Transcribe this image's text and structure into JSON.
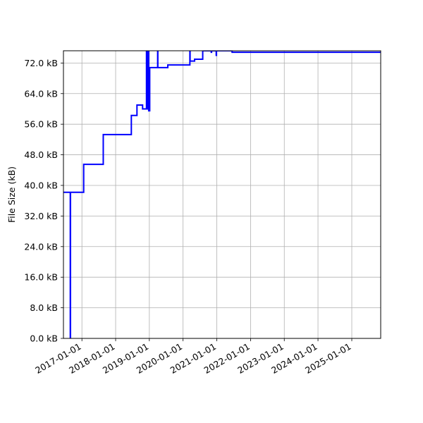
{
  "chart_data": {
    "type": "line",
    "title": "",
    "xlabel": "",
    "ylabel": "File Size (kB)",
    "grid": true,
    "legend": "none",
    "series_color": "#0000ff",
    "grid_color": "#b0b0b0",
    "xlim": [
      "2016-06-15",
      "2025-11-10"
    ],
    "ylim": [
      0,
      75.2
    ],
    "x_ticks": [
      {
        "date": "2017-01-01",
        "label": "2017-01-01"
      },
      {
        "date": "2018-01-01",
        "label": "2018-01-01"
      },
      {
        "date": "2019-01-01",
        "label": "2019-01-01"
      },
      {
        "date": "2020-01-01",
        "label": "2020-01-01"
      },
      {
        "date": "2021-01-01",
        "label": "2021-01-01"
      },
      {
        "date": "2022-01-01",
        "label": "2022-01-01"
      },
      {
        "date": "2023-01-01",
        "label": "2023-01-01"
      },
      {
        "date": "2024-01-01",
        "label": "2024-01-01"
      },
      {
        "date": "2025-01-01",
        "label": "2025-01-01"
      }
    ],
    "y_ticks": [
      {
        "value": 0,
        "label": "0.0 kB"
      },
      {
        "value": 8,
        "label": "8.0 kB"
      },
      {
        "value": 16,
        "label": "16.0 kB"
      },
      {
        "value": 24,
        "label": "24.0 kB"
      },
      {
        "value": 32,
        "label": "32.0 kB"
      },
      {
        "value": 40,
        "label": "40.0 kB"
      },
      {
        "value": 48,
        "label": "48.0 kB"
      },
      {
        "value": 56,
        "label": "56.0 kB"
      },
      {
        "value": 64,
        "label": "64.0 kB"
      },
      {
        "value": 72,
        "label": "72.0 kB"
      }
    ],
    "series": [
      {
        "points": [
          [
            "2016-06-15",
            38.2
          ],
          [
            "2016-08-28",
            38.2
          ],
          [
            "2016-08-28",
            0
          ],
          [
            "2016-08-30",
            0
          ],
          [
            "2016-08-30",
            38.2
          ],
          [
            "2017-01-20",
            38.2
          ],
          [
            "2017-01-20",
            45.5
          ],
          [
            "2017-08-20",
            45.5
          ],
          [
            "2017-08-20",
            53.3
          ],
          [
            "2018-06-20",
            53.3
          ],
          [
            "2018-06-20",
            58.3
          ],
          [
            "2018-08-20",
            58.3
          ],
          [
            "2018-08-20",
            61.0
          ],
          [
            "2018-10-20",
            61.0
          ],
          [
            "2018-10-20",
            60.0
          ],
          [
            "2018-12-01",
            60.0
          ],
          [
            "2018-12-01",
            75.2
          ],
          [
            "2018-12-05",
            75.2
          ],
          [
            "2018-12-05",
            60.0
          ],
          [
            "2018-12-10",
            60.0
          ],
          [
            "2018-12-10",
            75.2
          ],
          [
            "2018-12-14",
            75.2
          ],
          [
            "2018-12-14",
            60.0
          ],
          [
            "2018-12-20",
            60.0
          ],
          [
            "2018-12-20",
            75.2
          ],
          [
            "2018-12-25",
            75.2
          ],
          [
            "2018-12-25",
            59.5
          ],
          [
            "2019-01-05",
            59.5
          ],
          [
            "2019-01-05",
            70.8
          ],
          [
            "2019-04-01",
            70.8
          ],
          [
            "2019-04-01",
            75.0
          ],
          [
            "2019-04-03",
            75.0
          ],
          [
            "2019-04-03",
            70.8
          ],
          [
            "2019-07-20",
            70.8
          ],
          [
            "2019-07-20",
            71.5
          ],
          [
            "2020-03-15",
            71.5
          ],
          [
            "2020-03-15",
            75.0
          ],
          [
            "2020-03-17",
            75.0
          ],
          [
            "2020-03-17",
            72.5
          ],
          [
            "2020-05-05",
            72.5
          ],
          [
            "2020-05-05",
            73.0
          ],
          [
            "2020-08-01",
            73.0
          ],
          [
            "2020-08-01",
            75.2
          ],
          [
            "2020-11-01",
            75.2
          ],
          [
            "2020-11-01",
            74.8
          ],
          [
            "2020-11-05",
            74.8
          ],
          [
            "2020-11-05",
            75.2
          ],
          [
            "2020-12-25",
            75.2
          ],
          [
            "2020-12-25",
            74.0
          ],
          [
            "2020-12-28",
            74.0
          ],
          [
            "2020-12-28",
            75.2
          ],
          [
            "2021-06-15",
            75.2
          ],
          [
            "2021-06-15",
            74.8
          ],
          [
            "2025-11-10",
            74.8
          ]
        ]
      }
    ]
  }
}
